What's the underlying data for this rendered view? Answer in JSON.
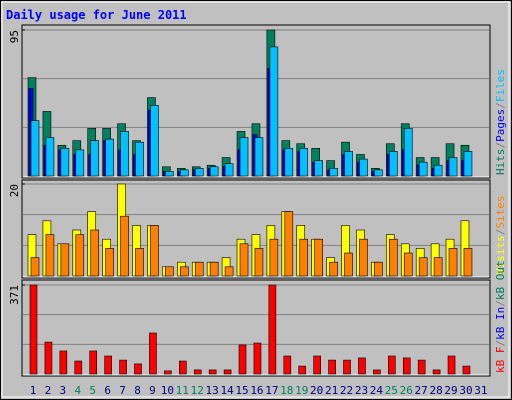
{
  "chart_data": {
    "type": "bar",
    "title": "Daily usage for June 2011",
    "legend_separator": "/",
    "categories": [
      "1",
      "2",
      "3",
      "4",
      "5",
      "6",
      "7",
      "8",
      "9",
      "10",
      "11",
      "12",
      "13",
      "14",
      "15",
      "16",
      "17",
      "18",
      "19",
      "20",
      "21",
      "22",
      "23",
      "24",
      "25",
      "26",
      "27",
      "28",
      "29",
      "30",
      "31"
    ],
    "category_colors": [
      "#000080",
      "#000080",
      "#000080",
      "#00805c",
      "#00805c",
      "#000080",
      "#000080",
      "#000080",
      "#000080",
      "#000080",
      "#00805c",
      "#00805c",
      "#000080",
      "#000080",
      "#000080",
      "#000080",
      "#000080",
      "#00805c",
      "#00805c",
      "#000080",
      "#000080",
      "#000080",
      "#000080",
      "#000080",
      "#00805c",
      "#00805c",
      "#000080",
      "#000080",
      "#000080",
      "#000080",
      "#000080"
    ],
    "panels": [
      {
        "ylim": [
          0,
          95
        ],
        "yticks": [
          95
        ],
        "series": [
          {
            "name": "Hits",
            "color": "#00805c",
            "values": [
              64,
              42,
              20,
              23,
              31,
              31,
              34,
              23,
              51,
              6,
              5,
              6,
              7,
              12,
              29,
              34,
              95,
              23,
              21,
              18,
              10,
              22,
              14,
              5,
              21,
              34,
              12,
              12,
              21,
              20,
              0
            ]
          },
          {
            "name": "Pages",
            "color": "#0000ff",
            "values": [
              57,
              20,
              17,
              14,
              14,
              23,
              17,
              14,
              43,
              3,
              3,
              4,
              5,
              6,
              17,
              27,
              70,
              17,
              16,
              9,
              4,
              14,
              9,
              3,
              14,
              17,
              7,
              5,
              10,
              10,
              0
            ]
          },
          {
            "name": "Files",
            "color": "#00c0ff",
            "values": [
              36,
              25,
              18,
              17,
              23,
              24,
              29,
              22,
              46,
              3,
              4,
              5,
              6,
              8,
              25,
              25,
              84,
              18,
              18,
              10,
              5,
              16,
              11,
              4,
              16,
              31,
              9,
              7,
              12,
              16,
              0
            ]
          }
        ]
      },
      {
        "ylim": [
          0,
          20
        ],
        "yticks": [
          20
        ],
        "series": [
          {
            "name": "Visits",
            "color": "#ffff00",
            "values": [
              9,
              12,
              7,
              10,
              14,
              8,
              20,
              11,
              11,
              2,
              3,
              3,
              3,
              4,
              8,
              9,
              11,
              14,
              11,
              8,
              4,
              11,
              10,
              3,
              9,
              7,
              6,
              7,
              8,
              12,
              0
            ]
          },
          {
            "name": "Sites",
            "color": "#ff8000",
            "values": [
              4,
              9,
              7,
              9,
              10,
              6,
              13,
              6,
              11,
              2,
              2,
              3,
              3,
              2,
              7,
              6,
              8,
              14,
              8,
              8,
              3,
              5,
              8,
              3,
              8,
              5,
              4,
              4,
              6,
              6,
              0
            ]
          }
        ]
      },
      {
        "ylim": [
          0,
          371
        ],
        "yticks": [
          371
        ],
        "series": [
          {
            "name": "kB F",
            "color": "#ff0000",
            "values": [
              371,
              133,
              96,
              54,
              96,
              75,
              58,
              42,
              171,
              13,
              54,
              17,
              17,
              17,
              121,
              129,
              371,
              75,
              33,
              75,
              58,
              58,
              67,
              17,
              75,
              67,
              58,
              17,
              75,
              33,
              0
            ]
          }
        ],
        "extra_legend": [
          {
            "name": "kB In",
            "color": "#0000ff"
          },
          {
            "name": "kB Out",
            "color": "#00805c"
          }
        ]
      }
    ]
  }
}
